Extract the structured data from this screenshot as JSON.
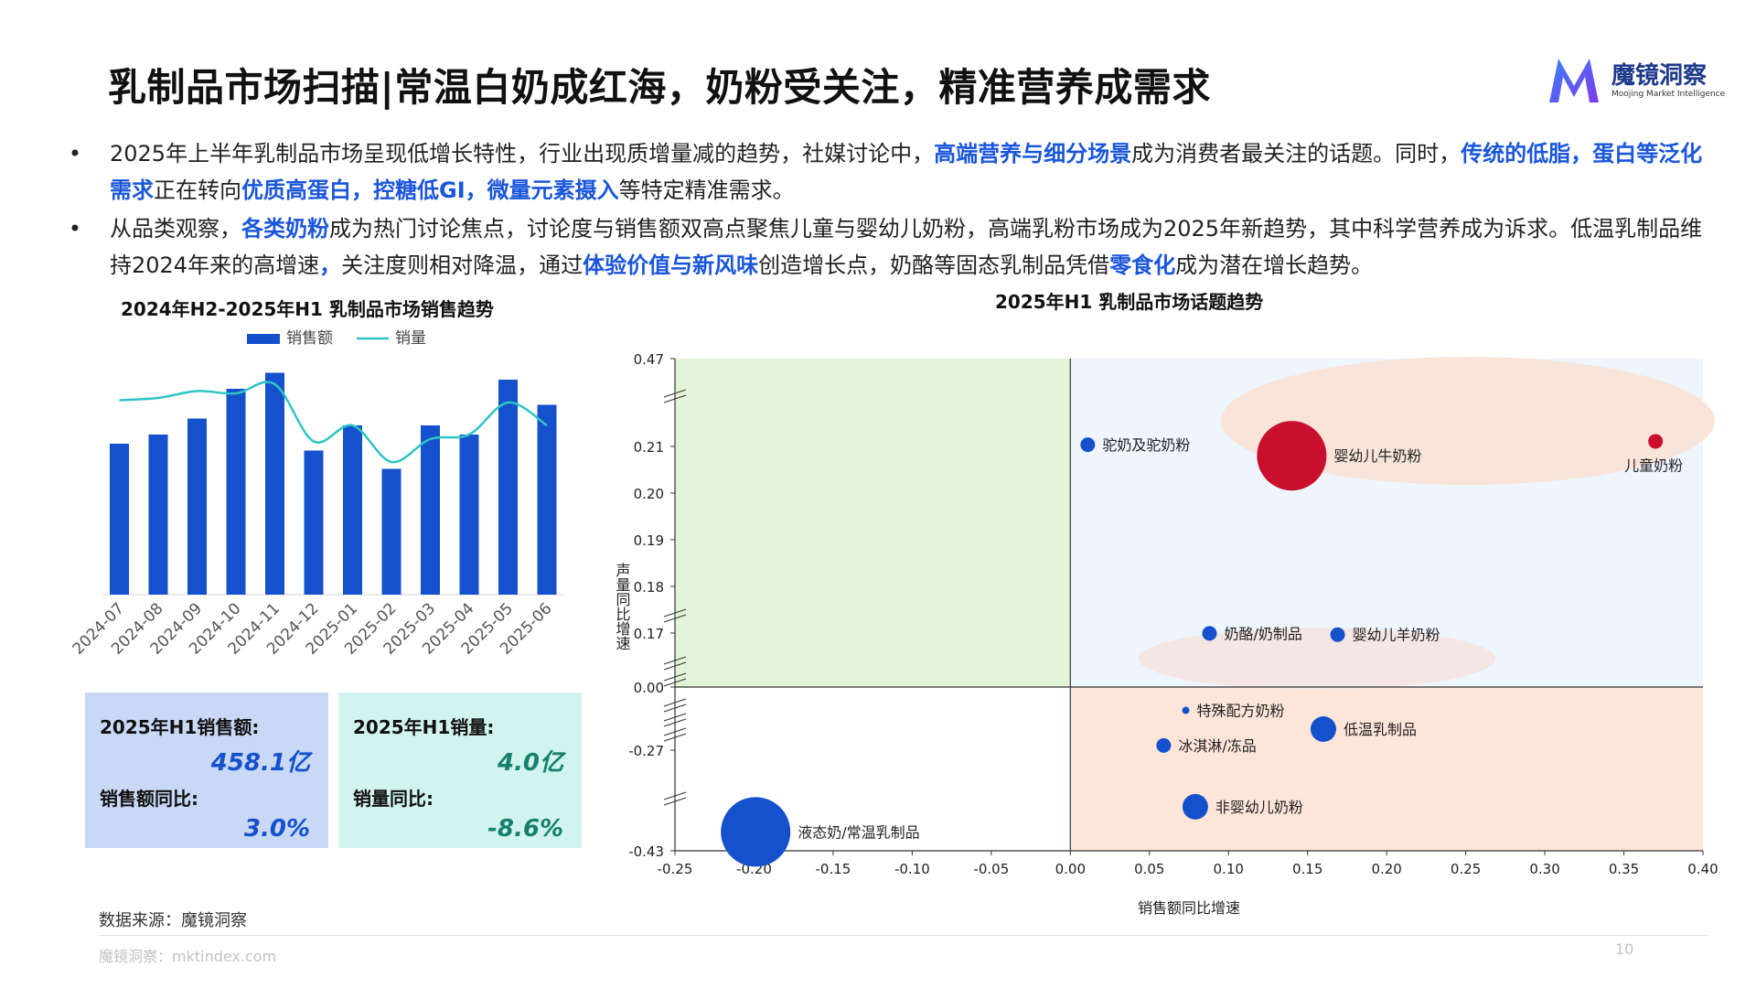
{
  "title": "乳制品市场扫描|常温白奶成红海，奶粉受关注，精准营养成需求",
  "logo": {
    "name": "魔镜洞察",
    "sub": "Moojing Market Intelligence"
  },
  "bullets": [
    {
      "dot": "•",
      "segments": [
        {
          "t": "2025年上半年乳制品市场呈现低增长特性，行业出现质增量减的趋势，社媒讨论中，",
          "h": false
        },
        {
          "t": "高端营养与细分场景",
          "h": true
        },
        {
          "t": "成为消费者最关注的话题。同时，",
          "h": false
        },
        {
          "t": "传统的低脂，蛋白等泛化需求",
          "h": true
        },
        {
          "t": "正在转向",
          "h": false
        },
        {
          "t": "优质高蛋白，控糖低GI，微量元素摄入",
          "h": true
        },
        {
          "t": "等特定精准需求。",
          "h": false
        }
      ]
    },
    {
      "dot": "•",
      "segments": [
        {
          "t": "从品类观察，",
          "h": false
        },
        {
          "t": "各类奶粉",
          "h": true
        },
        {
          "t": "成为热门讨论焦点，讨论度与销售额双高点聚焦儿童与婴幼儿奶粉，高端乳粉市场成为2025年新趋势，其中科学营养成为诉求。低温乳制品维持2024年来的高增速",
          "h": false
        },
        {
          "t": "，",
          "h": true
        },
        {
          "t": "关注度则相对降温，通过",
          "h": false
        },
        {
          "t": "体验价值与新风味",
          "h": true
        },
        {
          "t": "创造增长点，奶酪等固态乳制品凭借",
          "h": false
        },
        {
          "t": "零食化",
          "h": true
        },
        {
          "t": "成为潜在增长趋势。",
          "h": false
        }
      ]
    }
  ],
  "left_chart_title": "2024年H2-2025年H1 乳制品市场销售趋势",
  "right_chart_title": "2025年H1 乳制品市场话题趋势",
  "colors": {
    "bar": "#1551cc",
    "line": "#2ec4c4",
    "accent_blue": "#1a56db",
    "red": "#c8102e",
    "quad_green": "#e3f3d7",
    "quad_blue": "#eef5fd",
    "quad_peach": "#fde6d8",
    "ellipse_peach": "#f8e3d6"
  },
  "chart_data": [
    {
      "type": "bar",
      "categories": [
        "2024-07",
        "2024-08",
        "2024-09",
        "2024-10",
        "2024-11",
        "2024-12",
        "2025-01",
        "2025-02",
        "2025-03",
        "2025-04",
        "2025-05",
        "2025-06"
      ],
      "series": [
        {
          "name": "销售额",
          "type": "bar",
          "values": [
            66,
            70,
            77,
            90,
            97,
            63,
            74,
            55,
            74,
            70,
            94,
            83
          ]
        },
        {
          "name": "销量",
          "type": "line",
          "values": [
            85,
            86,
            89,
            88,
            92,
            67,
            74,
            58,
            68,
            70,
            84,
            74
          ]
        }
      ],
      "grid": false,
      "legend": "top"
    },
    {
      "type": "scatter",
      "xlabel": "销售额同比增速",
      "ylabel": "声量同比增速",
      "xlim": [
        -0.25,
        0.4
      ],
      "x_ticks": [
        "-0.25",
        "-0.20",
        "-0.15",
        "-0.10",
        "-0.05",
        "0.00",
        "0.05",
        "0.10",
        "0.15",
        "0.20",
        "0.25",
        "0.30",
        "0.35",
        "0.40"
      ],
      "y_ticks": [
        "0.47",
        "0.21",
        "0.20",
        "0.19",
        "0.18",
        "0.17",
        "0.00",
        "-0.27",
        "-0.43"
      ],
      "y_axis": "broken",
      "points": [
        {
          "name": "驼奶及驼奶粉",
          "x": 0.011,
          "y": 0.215,
          "size": "small",
          "color": "#1551cc"
        },
        {
          "name": "婴幼儿牛奶粉",
          "x": 0.14,
          "y": 0.208,
          "size": "large",
          "color": "#c8102e"
        },
        {
          "name": "儿童奶粉",
          "x": 0.37,
          "y": 0.225,
          "size": "small",
          "color": "#c8102e"
        },
        {
          "name": "奶酪/奶制品",
          "x": 0.088,
          "y": 0.169,
          "size": "small",
          "color": "#1551cc"
        },
        {
          "name": "婴幼儿羊奶粉",
          "x": 0.169,
          "y": 0.165,
          "size": "small",
          "color": "#1551cc"
        },
        {
          "name": "特殊配方奶粉",
          "x": 0.073,
          "y": -0.1,
          "size": "tiny",
          "color": "#1551cc"
        },
        {
          "name": "低温乳制品",
          "x": 0.16,
          "y": -0.18,
          "size": "medium",
          "color": "#1551cc"
        },
        {
          "name": "冰淇淋/冻品",
          "x": 0.059,
          "y": -0.25,
          "size": "small",
          "color": "#1551cc"
        },
        {
          "name": "非婴幼儿奶粉",
          "x": 0.079,
          "y": -0.36,
          "size": "medium",
          "color": "#1551cc"
        },
        {
          "name": "液态奶/常温乳制品",
          "x": -0.199,
          "y": -0.4,
          "size": "large",
          "color": "#1551cc"
        }
      ]
    }
  ],
  "kpi": {
    "left": {
      "label1": "2025年H1销售额:",
      "value1": "458.1亿",
      "label2": "销售额同比:",
      "value2": "3.0%"
    },
    "right": {
      "label1": "2025年H1销量:",
      "value1": "4.0亿",
      "label2": "销量同比:",
      "value2": "-8.6%"
    }
  },
  "source": "数据来源：魔镜洞察",
  "footer": "魔镜洞察：mktindex.com",
  "page_number": "10"
}
